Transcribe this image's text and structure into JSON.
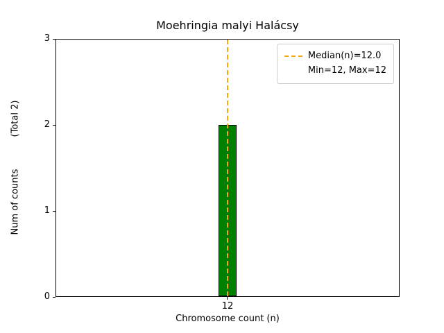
{
  "chart_data": {
    "type": "bar",
    "title": "Moehringia malyi Halácsy",
    "xlabel": "Chromosome count (n)",
    "ylabel": "Num of counts",
    "total_label": "(Total 2)",
    "categories": [
      "12"
    ],
    "values": [
      2
    ],
    "ylim": [
      0,
      3
    ],
    "yticks": [
      "0",
      "1",
      "2",
      "3"
    ],
    "grid": false,
    "bar_color": "#008000",
    "bar_edge_color": "#000000",
    "median_line": {
      "x": 12,
      "value": 12.0,
      "color": "#FFA500",
      "style": "dashed"
    },
    "legend": {
      "position": "upper right",
      "entries": [
        {
          "label": "Median(n)=12.0",
          "sample": "dashed-line",
          "color": "#FFA500"
        },
        {
          "label": "Min=12, Max=12",
          "sample": "none"
        }
      ]
    }
  }
}
